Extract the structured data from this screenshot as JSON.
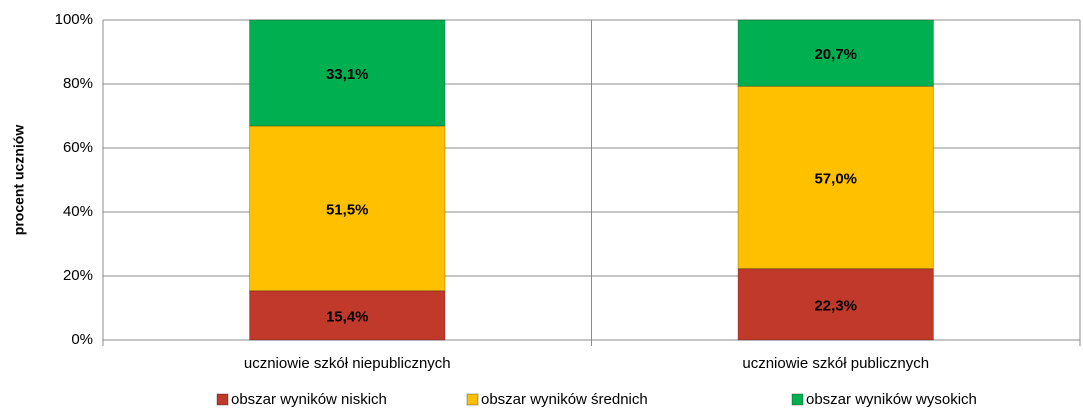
{
  "chart_data": {
    "type": "stacked_bar",
    "y_axis_label": "procent uczniów",
    "categories": [
      "uczniowie szkół niepublicznych",
      "uczniowie szkół publicznych"
    ],
    "series": [
      {
        "name": "obszar wyników niskich",
        "color": "#c0392b",
        "values": [
          15.4,
          22.3
        ],
        "value_labels": [
          "15,4%",
          "22,3%"
        ]
      },
      {
        "name": "obszar  wyników średnich",
        "color": "#ffc000",
        "values": [
          51.5,
          57.0
        ],
        "value_labels": [
          "51,5%",
          "57,0%"
        ]
      },
      {
        "name": "obszar wyników wysokich",
        "color": "#00b050",
        "values": [
          33.1,
          20.7
        ],
        "value_labels": [
          "33,1%",
          "20,7%"
        ]
      }
    ],
    "ylim": [
      0,
      100
    ],
    "yticks": [
      {
        "value": 0,
        "label": "0%"
      },
      {
        "value": 20,
        "label": "20%"
      },
      {
        "value": 40,
        "label": "40%"
      },
      {
        "value": 60,
        "label": "60%"
      },
      {
        "value": 80,
        "label": "80%"
      },
      {
        "value": 100,
        "label": "100%"
      }
    ],
    "grid": true,
    "legend": "bottom"
  }
}
